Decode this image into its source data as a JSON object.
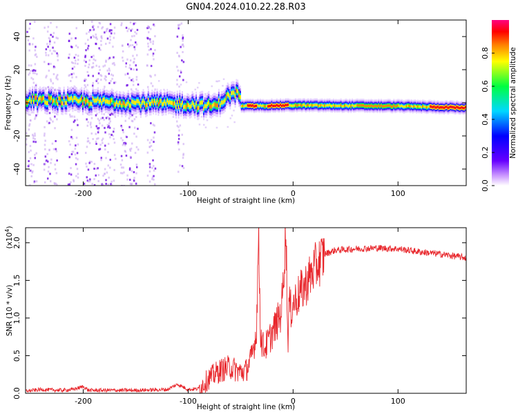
{
  "title": "GN04.2024.010.22.28.R03",
  "colors": {
    "snr_line": "#e8262b",
    "axis": "#000000",
    "spectro_bg": "#ffffff"
  },
  "chart_data": [
    {
      "type": "heatmap",
      "xlabel": "Height of straight line (km)",
      "ylabel": "Frequency (Hz)",
      "xlim": [
        -255,
        165
      ],
      "ylim": [
        -50,
        50
      ],
      "x_ticks": [
        -200,
        -100,
        0,
        100
      ],
      "x_tick_labels": [
        "-200",
        "-100",
        "0",
        "100"
      ],
      "y_ticks": [
        -40,
        -20,
        0,
        20,
        40
      ],
      "y_tick_labels": [
        "-40",
        "-20",
        "0",
        "20",
        "40"
      ],
      "colorbar": {
        "label": "Normalized spectral amplitude",
        "range": [
          0,
          1
        ],
        "ticks": [
          0.0,
          0.2,
          0.4,
          0.6,
          0.8
        ],
        "tick_labels": [
          "0.0",
          "0.2",
          "0.4",
          "0.6",
          "0.8"
        ],
        "colormap": "rainbow (purple-blue-cyan-green-yellow-red-magenta)"
      },
      "ridge": [
        {
          "x": -255,
          "y": 1.5
        },
        {
          "x": -200,
          "y": 1
        },
        {
          "x": -150,
          "y": 0
        },
        {
          "x": -100,
          "y": -1
        },
        {
          "x": -75,
          "y": -2
        },
        {
          "x": -60,
          "y": 5
        },
        {
          "x": -52,
          "y": 6
        },
        {
          "x": -50,
          "y": -2
        },
        {
          "x": 0,
          "y": -1.5
        },
        {
          "x": 100,
          "y": -2
        },
        {
          "x": 165,
          "y": -3
        }
      ],
      "peak_amplitude_segments": [
        {
          "x0": -45,
          "x1": -35,
          "amplitude": 1.0
        },
        {
          "x0": -25,
          "x1": -5,
          "amplitude": 0.9
        },
        {
          "x0": 60,
          "x1": 100,
          "amplitude": 0.75
        },
        {
          "x0": 130,
          "x1": 165,
          "amplitude": 1.0
        }
      ]
    },
    {
      "type": "line",
      "xlabel": "Height of straight line (km)",
      "ylabel": "SNR (10 * v/v)",
      "y_multiplier": "(x10",
      "y_multiplier_exp": "4",
      "y_multiplier_close": ")",
      "xlim": [
        -255,
        165
      ],
      "ylim": [
        0,
        2.2
      ],
      "x_ticks": [
        -200,
        -100,
        0,
        100
      ],
      "x_tick_labels": [
        "-200",
        "-100",
        "0",
        "100"
      ],
      "y_ticks": [
        0.0,
        0.5,
        1.0,
        1.5,
        2.0
      ],
      "y_tick_labels": [
        "0.0",
        "0.5",
        "1.0",
        "1.5",
        "2.0"
      ],
      "series": [
        {
          "color": "#e8262b",
          "x": [
            -255,
            -240,
            -220,
            -210,
            -200,
            -195,
            -180,
            -150,
            -120,
            -110,
            -100,
            -90,
            -80,
            -70,
            -60,
            -50,
            -45,
            -40,
            -35,
            -34,
            -33,
            -32,
            -31,
            -30,
            -28,
            -25,
            -20,
            -15,
            -12,
            -10,
            -8,
            -7,
            -6,
            -5,
            -4,
            -2,
            0,
            10,
            20,
            30,
            40,
            60,
            80,
            100,
            120,
            140,
            165
          ],
          "y": [
            0.03,
            0.05,
            0.04,
            0.05,
            0.09,
            0.04,
            0.04,
            0.04,
            0.05,
            0.12,
            0.05,
            0.06,
            0.2,
            0.3,
            0.35,
            0.28,
            0.3,
            0.45,
            0.8,
            1.4,
            2.1,
            1.5,
            0.8,
            0.7,
            0.6,
            0.65,
            0.8,
            0.95,
            1.05,
            1.3,
            1.9,
            2.2,
            1.6,
            0.6,
            1.2,
            1.1,
            1.2,
            1.4,
            1.65,
            1.85,
            1.9,
            1.92,
            1.93,
            1.92,
            1.88,
            1.85,
            1.8
          ]
        }
      ]
    }
  ]
}
